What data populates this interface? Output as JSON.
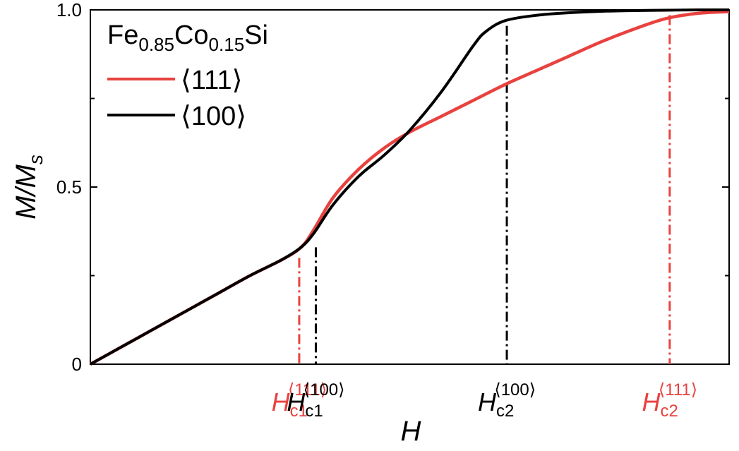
{
  "chart_data": {
    "type": "line",
    "title": "",
    "xlabel": "H",
    "ylabel": {
      "main": "M/M",
      "sub": "s"
    },
    "xlim": [
      0,
      1
    ],
    "ylim": [
      0,
      1.0
    ],
    "x_ticks_shown": false,
    "y_ticks": [
      {
        "value": 0,
        "label": "0"
      },
      {
        "value": 0.5,
        "label": "0.5"
      },
      {
        "value": 1.0,
        "label": "1.0"
      }
    ],
    "grid": false,
    "legend": {
      "placement": "top-left",
      "title": {
        "base": "Fe",
        "sub1": "0.85",
        "mid": "Co",
        "sub2": "0.15",
        "tail": "Si"
      }
    },
    "series": [
      {
        "name": "⟨111⟩",
        "color": "#e8423f",
        "x": [
          0,
          0.05,
          0.1,
          0.15,
          0.2,
          0.25,
          0.3,
          0.33,
          0.35,
          0.38,
          0.42,
          0.46,
          0.5,
          0.55,
          0.6,
          0.65,
          0.7,
          0.75,
          0.8,
          0.85,
          0.9,
          0.95,
          1.0
        ],
        "y": [
          0,
          0.05,
          0.1,
          0.15,
          0.2,
          0.25,
          0.295,
          0.33,
          0.38,
          0.47,
          0.55,
          0.61,
          0.655,
          0.7,
          0.745,
          0.79,
          0.83,
          0.87,
          0.91,
          0.945,
          0.975,
          0.99,
          0.995
        ]
      },
      {
        "name": "⟨100⟩",
        "color": "#000000",
        "x": [
          0,
          0.05,
          0.1,
          0.15,
          0.2,
          0.25,
          0.3,
          0.33,
          0.35,
          0.38,
          0.42,
          0.46,
          0.5,
          0.55,
          0.6,
          0.62,
          0.65,
          0.7,
          0.75,
          0.8,
          0.85,
          0.9,
          0.95,
          1.0
        ],
        "y": [
          0,
          0.05,
          0.1,
          0.15,
          0.2,
          0.25,
          0.295,
          0.33,
          0.37,
          0.45,
          0.53,
          0.59,
          0.66,
          0.77,
          0.9,
          0.94,
          0.97,
          0.985,
          0.992,
          0.996,
          0.998,
          0.999,
          1.0,
          1.0
        ]
      }
    ],
    "critical_fields": [
      {
        "id": "hc1-111",
        "x": 0.327,
        "y": 0.3,
        "base": "H",
        "sub": "c1",
        "sup": "⟨111⟩",
        "color": "#e8423f"
      },
      {
        "id": "hc1-100",
        "x": 0.353,
        "y": 0.33,
        "base": "H",
        "sub": "c1",
        "sup": "⟨100⟩",
        "color": "#000000"
      },
      {
        "id": "hc2-100",
        "x": 0.652,
        "y": 0.955,
        "base": "H",
        "sub": "c2",
        "sup": "⟨100⟩",
        "color": "#000000"
      },
      {
        "id": "hc2-111",
        "x": 0.907,
        "y": 0.985,
        "base": "H",
        "sub": "c2",
        "sup": "⟨111⟩",
        "color": "#e8423f"
      }
    ]
  }
}
